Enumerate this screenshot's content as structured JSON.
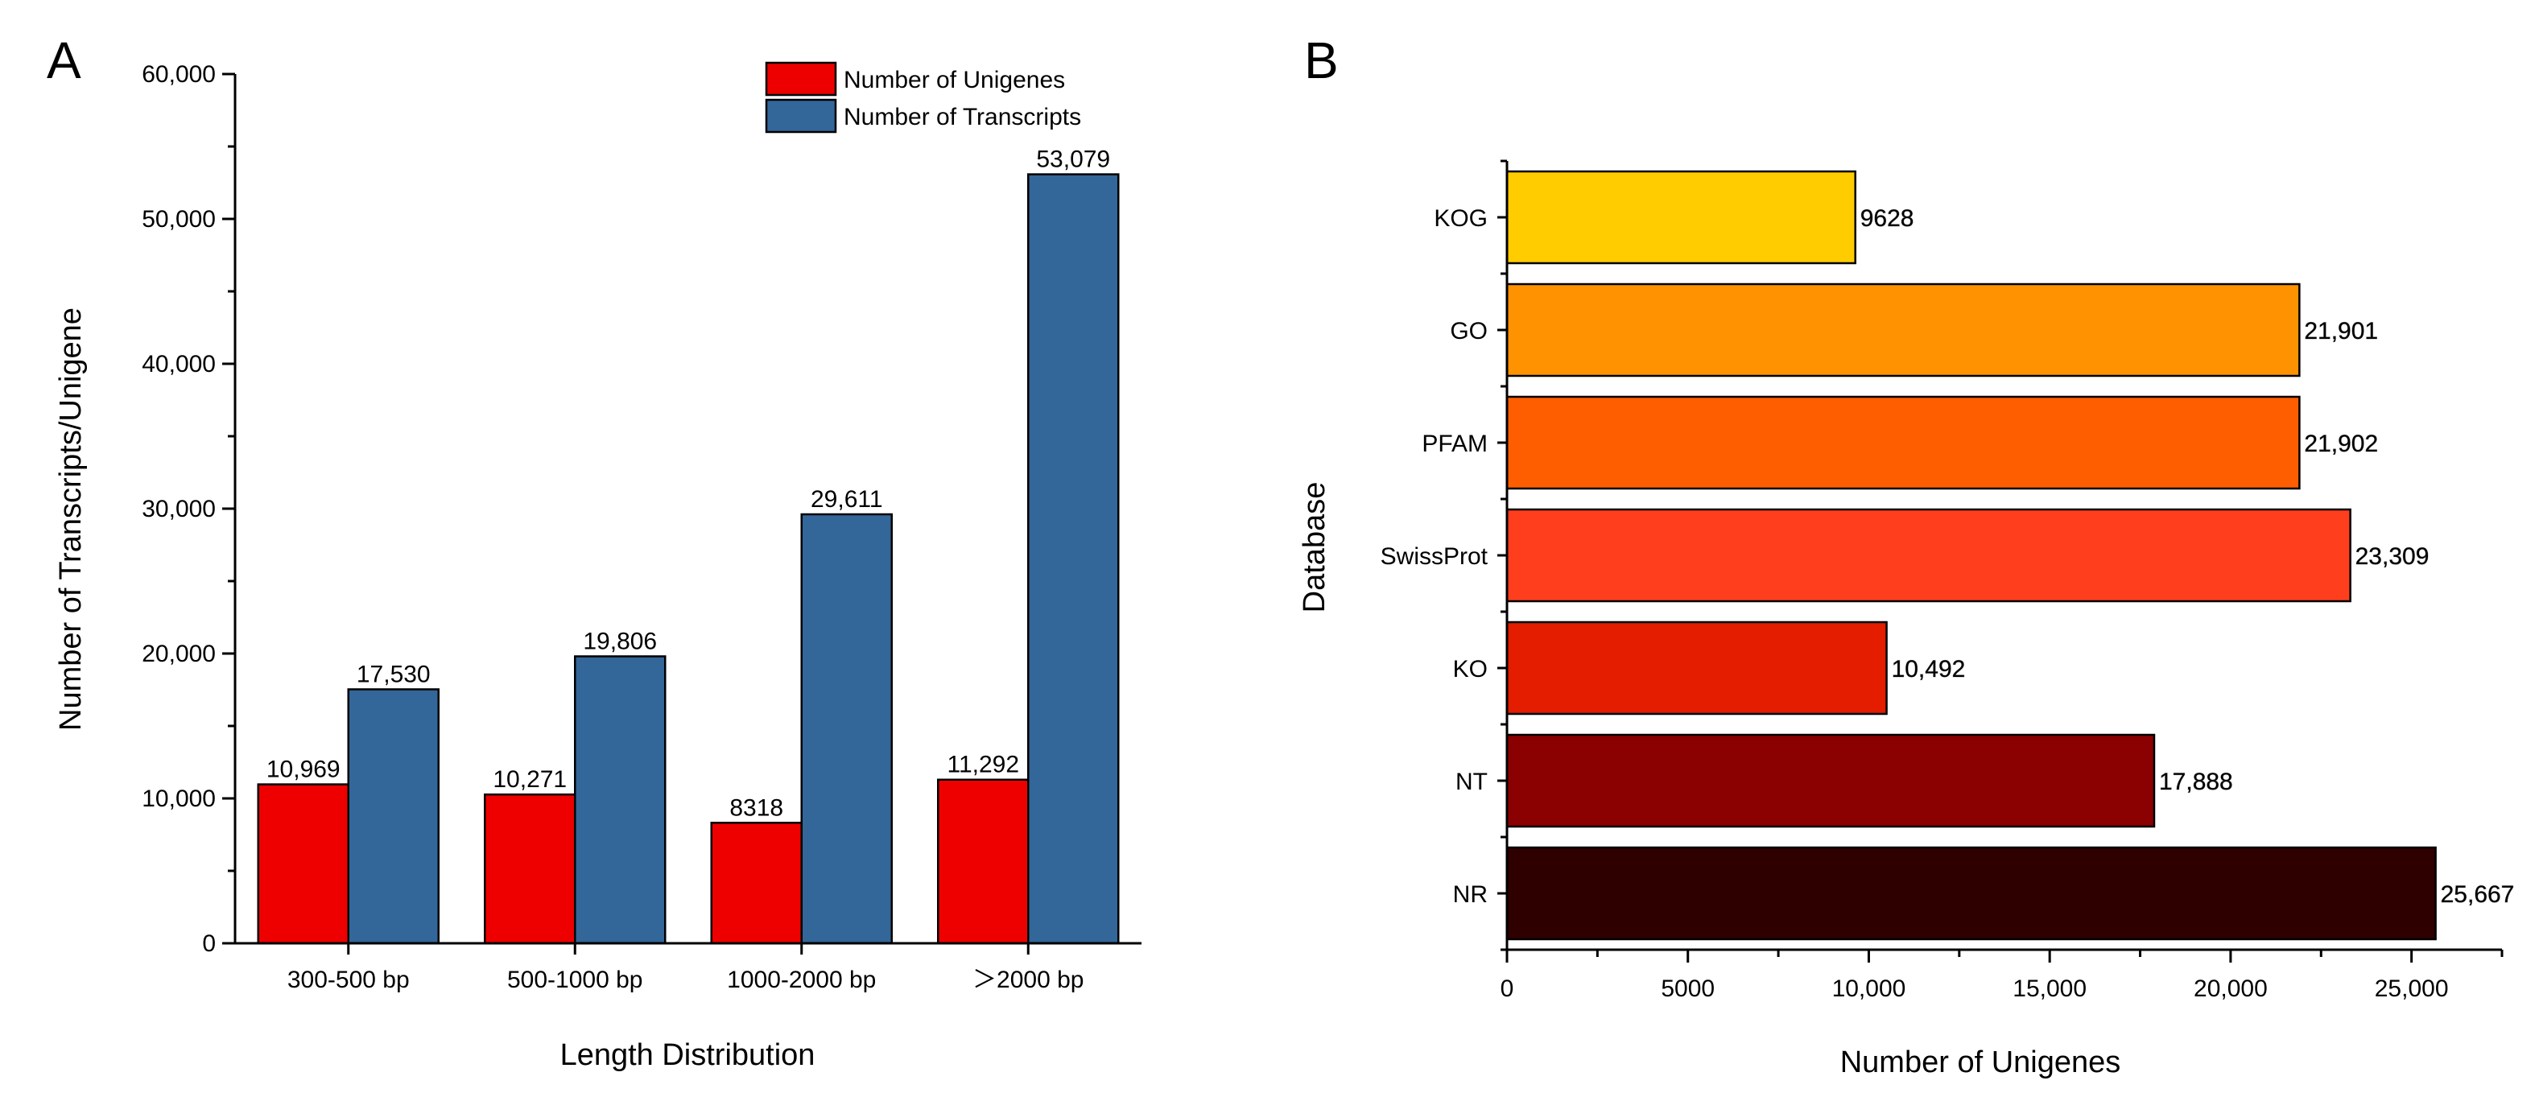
{
  "chart_data": [
    {
      "panel": "A",
      "type": "bar",
      "xlabel": "Length Distribution",
      "ylabel": "Number of Transcripts/Unigene",
      "ylim": [
        0,
        60000
      ],
      "yticks": [
        0,
        10000,
        20000,
        30000,
        40000,
        50000,
        60000
      ],
      "ytick_labels": [
        "0",
        "10,000",
        "20,000",
        "30,000",
        "40,000",
        "50,000",
        "60,000"
      ],
      "legend_position": "top-right",
      "categories": [
        "300-500 bp",
        "500-1000 bp",
        "1000-2000 bp",
        "＞2000 bp"
      ],
      "series": [
        {
          "name": "Number of Unigenes",
          "color": "#ee0000",
          "values": [
            10969,
            10271,
            8318,
            11292
          ],
          "labels": [
            "10,969",
            "10,271",
            "8318",
            "11,292"
          ]
        },
        {
          "name": "Number of Transcripts",
          "color": "#336699",
          "values": [
            17530,
            19806,
            29611,
            53079
          ],
          "labels": [
            "17,530",
            "19,806",
            "29,611",
            "53,079"
          ]
        }
      ]
    },
    {
      "panel": "B",
      "type": "bar",
      "orientation": "horizontal",
      "xlabel": "Number of Unigenes",
      "ylabel": "Database",
      "xlim": [
        0,
        27500
      ],
      "xticks": [
        0,
        5000,
        10000,
        15000,
        20000,
        25000
      ],
      "xtick_labels": [
        "0",
        "5000",
        "10,000",
        "15,000",
        "20,000",
        "25,000"
      ],
      "categories": [
        "KOG",
        "GO",
        "PFAM",
        "SwissProt",
        "KO",
        "NT",
        "NR"
      ],
      "values": [
        9628,
        21901,
        21902,
        23309,
        10492,
        17888,
        25667
      ],
      "labels": [
        "9628",
        "21,901",
        "21,902",
        "23,309",
        "10,492",
        "17,888",
        "25,667"
      ],
      "colors": [
        "#ffcc00",
        "#ff9200",
        "#ff5e00",
        "#ff3e1e",
        "#e41c00",
        "#8b0000",
        "#2e0000"
      ]
    }
  ]
}
